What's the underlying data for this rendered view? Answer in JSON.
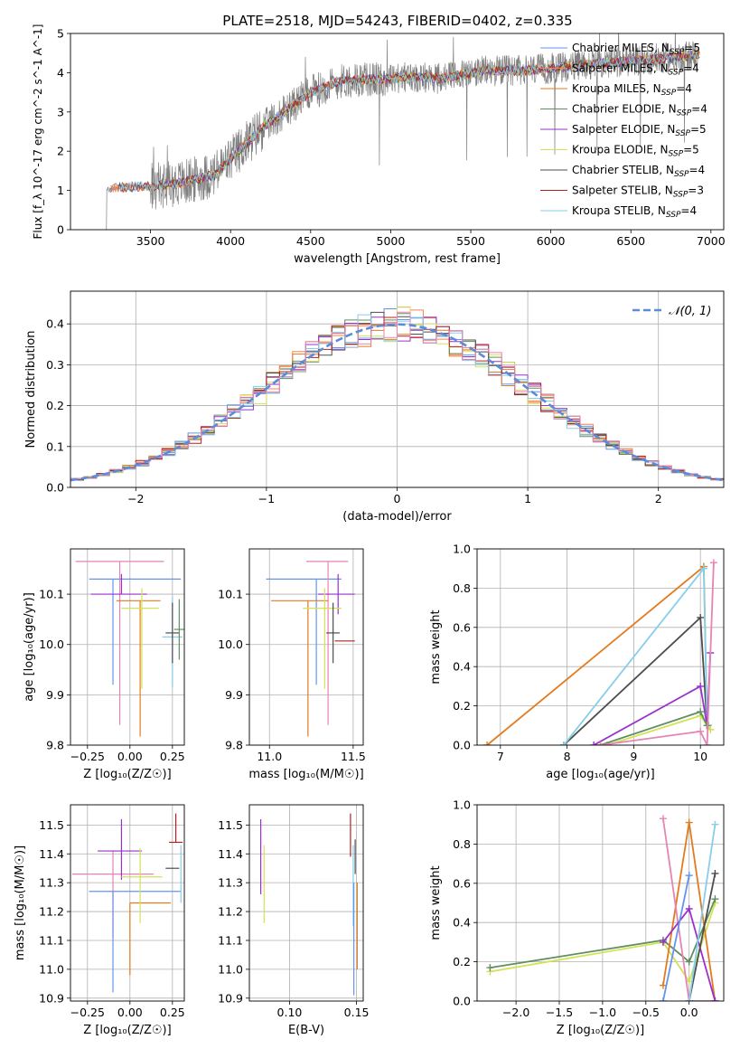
{
  "figure": {
    "title": "PLATE=2518, MJD=54243, FIBERID=0402, z=0.335"
  },
  "colors": {
    "Chabrier MILES": "#6495ed",
    "Salpeter MILES": "#ff7f50",
    "Kroupa MILES": "#e37b1e",
    "Chabrier ELODIE": "#5f8f5f",
    "Salpeter ELODIE": "#9932cc",
    "Kroupa ELODIE": "#d4e157",
    "Chabrier STELIB": "#4d4d4d",
    "Salpeter STELIB": "#b22222",
    "Kroupa STELIB": "#87ceeb",
    "data": "#808080",
    "gaussian": "#5b8bd9",
    "pink": "#e684b4"
  },
  "chart_data": [
    {
      "id": "spectrum",
      "type": "line",
      "title": "PLATE=2518, MJD=54243, FIBERID=0402, z=0.335",
      "xlabel": "wavelength [Angstrom, rest frame]",
      "ylabel": "Flux [f_λ 10^-17 erg cm^-2 s^-1 A^-1]",
      "xlim": [
        3000,
        7080
      ],
      "ylim": [
        0,
        5
      ],
      "xticks": [
        "3500",
        "4000",
        "4500",
        "5000",
        "5500",
        "6000",
        "6500",
        "7000"
      ],
      "yticks": [
        "0",
        "1",
        "2",
        "3",
        "4",
        "5"
      ],
      "grid": false,
      "legend_position": "top-right",
      "legend": [
        {
          "base": "Chabrier MILES, N",
          "sub": "SSP",
          "tail": "=5",
          "key": "Chabrier MILES"
        },
        {
          "base": "Salpeter MILES, N",
          "sub": "SSP",
          "tail": "=4",
          "key": "Salpeter MILES"
        },
        {
          "base": "Kroupa MILES, N",
          "sub": "SSP",
          "tail": "=4",
          "key": "Kroupa MILES"
        },
        {
          "base": "Chabrier ELODIE, N",
          "sub": "SSP",
          "tail": "=4",
          "key": "Chabrier ELODIE"
        },
        {
          "base": "Salpeter ELODIE, N",
          "sub": "SSP",
          "tail": "=5",
          "key": "Salpeter ELODIE"
        },
        {
          "base": "Kroupa ELODIE, N",
          "sub": "SSP",
          "tail": "=5",
          "key": "Kroupa ELODIE"
        },
        {
          "base": "Chabrier STELIB, N",
          "sub": "SSP",
          "tail": "=4",
          "key": "Chabrier STELIB"
        },
        {
          "base": "Salpeter STELIB, N",
          "sub": "SSP",
          "tail": "=3",
          "key": "Salpeter STELIB"
        },
        {
          "base": "Kroupa STELIB, N",
          "sub": "SSP",
          "tail": "=4",
          "key": "Kroupa STELIB"
        }
      ],
      "continuum_x": [
        3220,
        3300,
        3500,
        3700,
        3900,
        4000,
        4200,
        4400,
        4500,
        4700,
        5000,
        5200,
        5300,
        5600,
        5800,
        6000,
        6200,
        6500,
        6800,
        7000
      ],
      "continuum_y": [
        1.0,
        1.08,
        1.1,
        1.2,
        1.4,
        1.8,
        2.6,
        3.2,
        3.5,
        3.8,
        3.85,
        3.9,
        3.85,
        4.05,
        4.05,
        4.1,
        4.2,
        4.3,
        4.4,
        4.5
      ],
      "data_x_range": [
        3220,
        6920
      ]
    },
    {
      "id": "residuals",
      "type": "histogram",
      "xlabel": "(data-model)/error",
      "ylabel": "Normed distribution",
      "xlim": [
        -2.5,
        2.5
      ],
      "ylim": [
        0,
        0.48
      ],
      "xticks": [
        "−2",
        "−1",
        "0",
        "1",
        "2"
      ],
      "yticks": [
        "0.0",
        "0.1",
        "0.2",
        "0.3",
        "0.4"
      ],
      "grid": true,
      "legend_position": "top-right",
      "legend": [
        {
          "label": "𝒩(0, 1)",
          "key": "gaussian"
        }
      ],
      "bins": 50
    },
    {
      "id": "age-vs-Z",
      "type": "scatter",
      "xlabel": "Z [log₁₀(Z/Z☉)]",
      "ylabel": "age  [log₁₀(age/yr)]",
      "xlim": [
        -0.35,
        0.32
      ],
      "ylim": [
        9.8,
        10.19
      ],
      "xticks": [
        "−0.25",
        "0.00",
        "0.25"
      ],
      "yticks": [
        "9.8",
        "9.9",
        "10.0",
        "10.1"
      ],
      "grid": true,
      "points": [
        {
          "key": "pink",
          "x": -0.06,
          "xerr": [
            0.26,
            0.26
          ],
          "y": 10.165,
          "yerr": [
            0.325,
            0.0
          ]
        },
        {
          "key": "Chabrier MILES",
          "x": -0.1,
          "xerr": [
            0.14,
            0.4
          ],
          "y": 10.13,
          "yerr": [
            0.21,
            0.0
          ]
        },
        {
          "key": "Salpeter ELODIE",
          "x": -0.05,
          "xerr": [
            0.18,
            0.15
          ],
          "y": 10.1,
          "yerr": [
            0.0,
            0.04
          ]
        },
        {
          "key": "Kroupa MILES",
          "x": 0.06,
          "xerr": [
            0.14,
            0.12
          ],
          "y": 10.087,
          "yerr": [
            0.27,
            0.0
          ]
        },
        {
          "key": "Kroupa ELODIE",
          "x": 0.07,
          "xerr": [
            0.12,
            0.1
          ],
          "y": 10.072,
          "yerr": [
            0.16,
            0.04
          ]
        },
        {
          "key": "Kroupa STELIB",
          "x": 0.25,
          "xerr": [
            0.06,
            0.06
          ],
          "y": 10.015,
          "yerr": [
            0.1,
            0.08
          ]
        },
        {
          "key": "Chabrier STELIB",
          "x": 0.25,
          "xerr": [
            0.04,
            0.04
          ],
          "y": 10.023,
          "yerr": [
            0.06,
            0.06
          ]
        },
        {
          "key": "Chabrier ELODIE",
          "x": 0.29,
          "xerr": [
            0.03,
            0.03
          ],
          "y": 10.03,
          "yerr": [
            0.06,
            0.06
          ]
        }
      ]
    },
    {
      "id": "age-vs-mass",
      "type": "scatter",
      "xlabel": "mass [log₁₀(M/M☉)]",
      "xlim": [
        10.88,
        11.56
      ],
      "ylim": [
        9.8,
        10.19
      ],
      "xticks": [
        "11.0",
        "11.5"
      ],
      "yticks": [
        "9.8",
        "9.9",
        "10.0",
        "10.1"
      ],
      "grid": true,
      "points": [
        {
          "key": "Chabrier MILES",
          "x": 11.28,
          "xerr": [
            0.3,
            0.15
          ],
          "y": 10.13,
          "yerr": [
            0.21,
            0.0
          ]
        },
        {
          "key": "pink",
          "x": 11.35,
          "xerr": [
            0.13,
            0.12
          ],
          "y": 10.165,
          "yerr": [
            0.325,
            0.0
          ]
        },
        {
          "key": "Salpeter ELODIE",
          "x": 11.41,
          "xerr": [
            0.12,
            0.1
          ],
          "y": 10.1,
          "yerr": [
            0.04,
            0.04
          ]
        },
        {
          "key": "Kroupa MILES",
          "x": 11.23,
          "xerr": [
            0.22,
            0.12
          ],
          "y": 10.087,
          "yerr": [
            0.27,
            0.0
          ]
        },
        {
          "key": "Kroupa ELODIE",
          "x": 11.33,
          "xerr": [
            0.13,
            0.1
          ],
          "y": 10.072,
          "yerr": [
            0.16,
            0.04
          ]
        },
        {
          "key": "Salpeter STELIB",
          "x": 11.45,
          "xerr": [
            0.06,
            0.06
          ],
          "y": 10.007,
          "yerr": [
            0.0,
            0.0
          ]
        },
        {
          "key": "Chabrier STELIB",
          "x": 11.38,
          "xerr": [
            0.04,
            0.04
          ],
          "y": 10.023,
          "yerr": [
            0.06,
            0.06
          ]
        }
      ]
    },
    {
      "id": "weight-vs-age",
      "type": "line",
      "xlabel": "age  [log₁₀(age/yr)]",
      "ylabel": "mass weight",
      "xlim": [
        6.65,
        10.35
      ],
      "ylim": [
        0,
        1
      ],
      "xticks": [
        "7",
        "8",
        "9",
        "10"
      ],
      "yticks": [
        "0.0",
        "0.2",
        "0.4",
        "0.6",
        "0.8",
        "1.0"
      ],
      "grid": true,
      "series": [
        {
          "key": "Kroupa MILES",
          "x": [
            6.8,
            10.05,
            10.1,
            10.15
          ],
          "y": [
            0.0,
            0.91,
            0.1,
            0.08
          ]
        },
        {
          "key": "Chabrier STELIB",
          "x": [
            7.95,
            10.0,
            10.1,
            10.12
          ],
          "y": [
            0.0,
            0.65,
            0.1,
            0.1
          ]
        },
        {
          "key": "Kroupa STELIB",
          "x": [
            7.95,
            10.05,
            10.1,
            10.12
          ],
          "y": [
            0.0,
            0.9,
            0.1,
            0.1
          ]
        },
        {
          "key": "Salpeter ELODIE",
          "x": [
            8.4,
            10.0,
            10.1,
            10.15
          ],
          "y": [
            0.0,
            0.3,
            0.1,
            0.47
          ]
        },
        {
          "key": "Kroupa ELODIE",
          "x": [
            8.6,
            10.0,
            10.1,
            10.15
          ],
          "y": [
            0.0,
            0.15,
            0.1,
            0.08
          ]
        },
        {
          "key": "Chabrier ELODIE",
          "x": [
            8.5,
            10.0,
            10.1
          ],
          "y": [
            0.0,
            0.17,
            0.1
          ]
        },
        {
          "key": "pink",
          "x": [
            8.5,
            10.0,
            10.1,
            10.2
          ],
          "y": [
            0.0,
            0.07,
            0.0,
            0.93
          ]
        }
      ]
    },
    {
      "id": "mass-vs-Z",
      "type": "scatter",
      "xlabel": "Z [log₁₀(Z/Z☉)]",
      "ylabel": "mass [log₁₀(M/M☉)]",
      "xlim": [
        -0.35,
        0.32
      ],
      "ylim": [
        10.89,
        11.57
      ],
      "xticks": [
        "−0.25",
        "0.00",
        "0.25"
      ],
      "yticks": [
        "10.9",
        "11.0",
        "11.1",
        "11.2",
        "11.3",
        "11.4",
        "11.5"
      ],
      "grid": true,
      "points": [
        {
          "key": "pink",
          "x": -0.1,
          "xerr": [
            0.24,
            0.24
          ],
          "y": 11.33,
          "yerr": [
            0.22,
            0.08
          ]
        },
        {
          "key": "Salpeter ELODIE",
          "x": -0.05,
          "xerr": [
            0.14,
            0.12
          ],
          "y": 11.41,
          "yerr": [
            0.1,
            0.11
          ]
        },
        {
          "key": "Chabrier MILES",
          "x": -0.1,
          "xerr": [
            0.14,
            0.4
          ],
          "y": 11.27,
          "yerr": [
            0.35,
            0.0
          ]
        },
        {
          "key": "Kroupa MILES",
          "x": 0.0,
          "xerr": [
            0.0,
            0.24
          ],
          "y": 11.23,
          "yerr": [
            0.25,
            0.0
          ]
        },
        {
          "key": "Kroupa ELODIE",
          "x": 0.06,
          "xerr": [
            0.11,
            0.13
          ],
          "y": 11.32,
          "yerr": [
            0.16,
            0.1
          ]
        },
        {
          "key": "Salpeter STELIB",
          "x": 0.27,
          "xerr": [
            0.04,
            0.04
          ],
          "y": 11.44,
          "yerr": [
            0.0,
            0.1
          ]
        },
        {
          "key": "Chabrier STELIB",
          "x": 0.25,
          "xerr": [
            0.04,
            0.04
          ],
          "y": 11.35,
          "yerr": [
            0.0,
            0.0
          ]
        },
        {
          "key": "Kroupa STELIB",
          "x": 0.3,
          "xerr": [
            0.0,
            0.0
          ],
          "y": 11.33,
          "yerr": [
            0.1,
            0.1
          ]
        }
      ]
    },
    {
      "id": "mass-vs-EBV",
      "type": "scatter",
      "xlabel": "E(B-V)",
      "xlim": [
        0.07,
        0.155
      ],
      "ylim": [
        10.89,
        11.57
      ],
      "xticks": [
        "0.10",
        "0.15"
      ],
      "yticks": [
        "10.9",
        "11.0",
        "11.1",
        "11.2",
        "11.3",
        "11.4",
        "11.5"
      ],
      "grid": true,
      "points": [
        {
          "key": "Salpeter ELODIE",
          "x": 0.0785,
          "xerr": [
            0,
            0
          ],
          "y": 11.4,
          "yerr": [
            0.14,
            0.12
          ]
        },
        {
          "key": "Kroupa ELODIE",
          "x": 0.081,
          "xerr": [
            0,
            0
          ],
          "y": 11.3,
          "yerr": [
            0.14,
            0.13
          ]
        },
        {
          "key": "Salpeter STELIB",
          "x": 0.1455,
          "xerr": [
            0,
            0
          ],
          "y": 11.47,
          "yerr": [
            0.08,
            0.07
          ]
        },
        {
          "key": "Kroupa STELIB",
          "x": 0.1475,
          "xerr": [
            0,
            0
          ],
          "y": 11.3,
          "yerr": [
            0.15,
            0.13
          ]
        },
        {
          "key": "Chabrier MILES",
          "x": 0.148,
          "xerr": [
            0,
            0
          ],
          "y": 11.1,
          "yerr": [
            0.19,
            0.2
          ]
        },
        {
          "key": "Chabrier STELIB",
          "x": 0.149,
          "xerr": [
            0,
            0
          ],
          "y": 11.38,
          "yerr": [
            0.05,
            0.07
          ]
        },
        {
          "key": "Kroupa MILES",
          "x": 0.1505,
          "xerr": [
            0,
            0
          ],
          "y": 11.15,
          "yerr": [
            0.15,
            0.15
          ]
        }
      ]
    },
    {
      "id": "weight-vs-Z",
      "type": "line",
      "xlabel": "Z [log₁₀(Z/Z☉)]",
      "ylabel": "mass weight",
      "xlim": [
        -2.45,
        0.4
      ],
      "ylim": [
        0,
        1
      ],
      "xticks": [
        "−2.0",
        "−1.5",
        "−1.0",
        "−0.5",
        "0.0"
      ],
      "yticks": [
        "0.0",
        "0.2",
        "0.4",
        "0.6",
        "0.8",
        "1.0"
      ],
      "grid": true,
      "series": [
        {
          "key": "Kroupa ELODIE",
          "x": [
            -2.3,
            -0.3,
            0.0,
            0.3
          ],
          "y": [
            0.15,
            0.3,
            0.1,
            0.5
          ]
        },
        {
          "key": "Chabrier ELODIE",
          "x": [
            -2.3,
            -0.3,
            0.0,
            0.3
          ],
          "y": [
            0.17,
            0.31,
            0.2,
            0.52
          ]
        },
        {
          "key": "Kroupa MILES",
          "x": [
            -0.3,
            0.0,
            0.3
          ],
          "y": [
            0.08,
            0.91,
            0.0
          ]
        },
        {
          "key": "pink",
          "x": [
            -0.3,
            0.0,
            0.3
          ],
          "y": [
            0.93,
            0.0,
            0.0
          ]
        },
        {
          "key": "Salpeter ELODIE",
          "x": [
            -0.3,
            0.0,
            0.3
          ],
          "y": [
            0.3,
            0.47,
            0.0
          ]
        },
        {
          "key": "Chabrier STELIB",
          "x": [
            0.0,
            0.3
          ],
          "y": [
            0.0,
            0.65
          ]
        },
        {
          "key": "Kroupa STELIB",
          "x": [
            0.0,
            0.3
          ],
          "y": [
            0.0,
            0.9
          ]
        },
        {
          "key": "Chabrier MILES",
          "x": [
            -0.3,
            0.0
          ],
          "y": [
            0.0,
            0.64
          ]
        }
      ]
    }
  ]
}
